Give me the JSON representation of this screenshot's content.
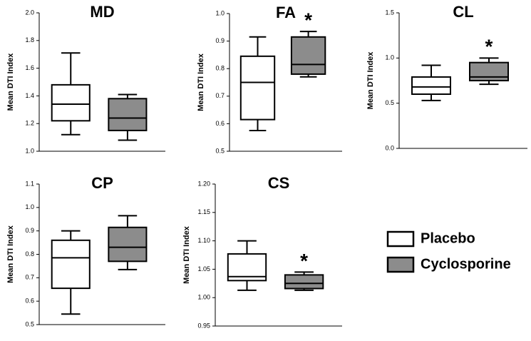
{
  "legend": {
    "entries": [
      {
        "name": "Placebo",
        "color": "#ffffff"
      },
      {
        "name": "Cyclosporine",
        "color": "#8c8c8c"
      }
    ]
  },
  "chart_data": [
    {
      "type": "box",
      "title": "MD",
      "ylabel": "Mean DTI Index",
      "ylim": [
        1.0,
        2.0
      ],
      "yticks": [
        {
          "value": 1.0,
          "label": "1.0"
        },
        1.2,
        1.4,
        1.6,
        1.8,
        {
          "value": 2.0,
          "label": "2.0"
        }
      ],
      "boxes": [
        {
          "min": 1.12,
          "q1": 1.22,
          "median": 1.34,
          "q3": 1.48,
          "max": 1.71
        },
        {
          "min": 1.08,
          "q1": 1.15,
          "median": 1.24,
          "q3": 1.38,
          "max": 1.41
        }
      ]
    },
    {
      "type": "box",
      "title": "FA",
      "ylabel": "Mean DTI Index",
      "annotation": "*",
      "ylim": [
        0.5,
        1.0
      ],
      "yticks": [
        0.5,
        0.6,
        0.7,
        0.8,
        0.9,
        {
          "value": 1.0,
          "label": "1.0"
        }
      ],
      "boxes": [
        {
          "min": 0.575,
          "q1": 0.615,
          "median": 0.75,
          "q3": 0.845,
          "max": 0.915
        },
        {
          "min": 0.77,
          "q1": 0.78,
          "median": 0.815,
          "q3": 0.915,
          "max": 0.935
        }
      ]
    },
    {
      "type": "box",
      "title": "CL",
      "ylabel": "Mean DTI Index",
      "annotation": "*",
      "ylim": [
        0.0,
        1.5
      ],
      "yticks": [
        {
          "value": 0.0,
          "label": "0.0"
        },
        0.5,
        {
          "value": 1.0,
          "label": "1.0"
        },
        1.5
      ],
      "boxes": [
        {
          "min": 0.53,
          "q1": 0.6,
          "median": 0.68,
          "q3": 0.79,
          "max": 0.92
        },
        {
          "min": 0.71,
          "q1": 0.75,
          "median": 0.79,
          "q3": 0.95,
          "max": 1.0
        }
      ]
    },
    {
      "type": "box",
      "title": "CP",
      "ylabel": "Mean DTI Index",
      "ylim": [
        0.5,
        1.1
      ],
      "yticks": [
        0.5,
        0.6,
        0.7,
        0.8,
        0.9,
        {
          "value": 1.0,
          "label": "1.0"
        },
        1.1
      ],
      "boxes": [
        {
          "min": 0.545,
          "q1": 0.655,
          "median": 0.785,
          "q3": 0.86,
          "max": 0.9
        },
        {
          "min": 0.735,
          "q1": 0.77,
          "median": 0.83,
          "q3": 0.915,
          "max": 0.965
        }
      ]
    },
    {
      "type": "box",
      "title": "CS",
      "ylabel": "Mean DTI Index",
      "annotation": "*",
      "ylim": [
        0.95,
        1.2
      ],
      "yticks": [
        0.95,
        {
          "value": 1.0,
          "label": "1.00"
        },
        1.05,
        {
          "value": 1.1,
          "label": "1.10"
        },
        1.15,
        {
          "value": 1.2,
          "label": "1.20"
        }
      ],
      "boxes": [
        {
          "min": 1.013,
          "q1": 1.03,
          "median": 1.037,
          "q3": 1.077,
          "max": 1.1
        },
        {
          "min": 1.013,
          "q1": 1.016,
          "median": 1.025,
          "q3": 1.04,
          "max": 1.045
        }
      ]
    }
  ]
}
